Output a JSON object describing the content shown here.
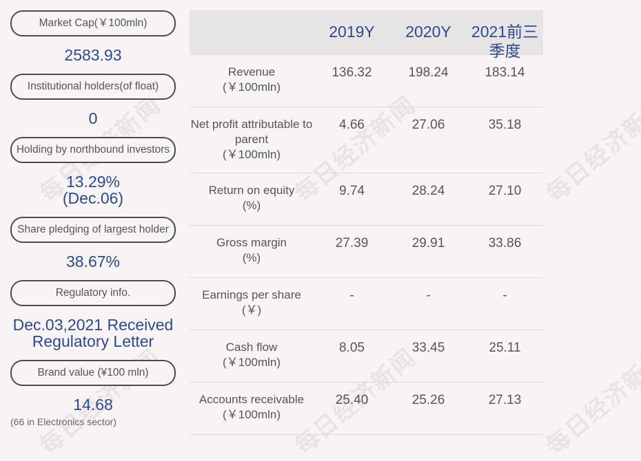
{
  "watermark": "每日经济新闻",
  "left": {
    "items": [
      {
        "label": "Market Cap(￥100mln)",
        "value": "2583.93"
      },
      {
        "label": "Institutional holders(of float)",
        "value": "0"
      },
      {
        "label": "Holding by northbound investors",
        "value": "13.29%\n(Dec.06)"
      },
      {
        "label": "Share pledging of largest holder",
        "value": "38.67%"
      },
      {
        "label": "Regulatory info.",
        "value": "Dec.03,2021 Received Regulatory Letter"
      },
      {
        "label": "Brand value (¥100 mln)",
        "value": "14.68",
        "note": "(66 in Electronics sector)"
      }
    ]
  },
  "table": {
    "headers": [
      "",
      "2019Y",
      "2020Y",
      "2021前三季度"
    ],
    "rows": [
      {
        "label": "Revenue\n(￥100mln)",
        "values": [
          "136.32",
          "198.24",
          "183.14"
        ]
      },
      {
        "label": "Net profit attributable to parent\n(￥100mln)",
        "values": [
          "4.66",
          "27.06",
          "35.18"
        ]
      },
      {
        "label": "Return on equity\n(%)",
        "values": [
          "9.74",
          "28.24",
          "27.10"
        ]
      },
      {
        "label": "Gross margin\n(%)",
        "values": [
          "27.39",
          "29.91",
          "33.86"
        ]
      },
      {
        "label": "Earnings per share\n(￥)",
        "values": [
          "-",
          "-",
          "-"
        ]
      },
      {
        "label": "Cash flow\n(￥100mln)",
        "values": [
          "8.05",
          "33.45",
          "25.11"
        ]
      },
      {
        "label": "Accounts receivable\n(￥100mln)",
        "values": [
          "25.40",
          "25.26",
          "27.13"
        ]
      }
    ]
  }
}
